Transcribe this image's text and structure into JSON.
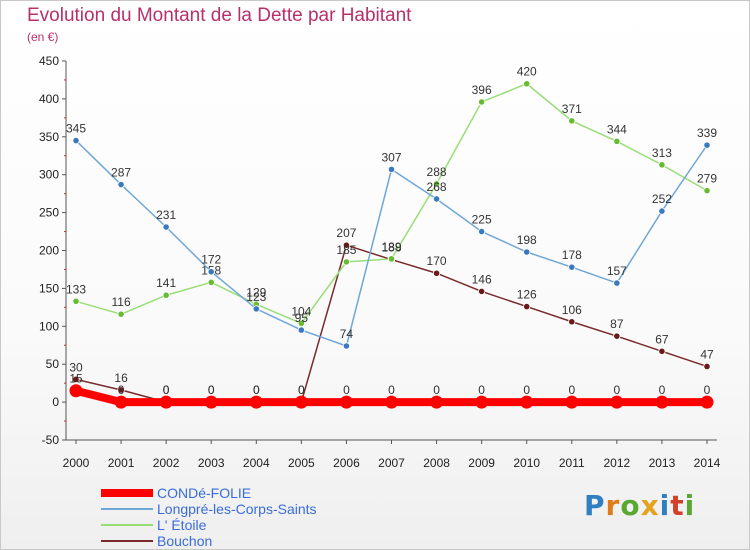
{
  "chart_data": {
    "type": "line",
    "title": "Evolution du Montant de la Dette par Habitant",
    "subtitle": "(en €)",
    "x": [
      "2000",
      "2001",
      "2002",
      "2003",
      "2004",
      "2005",
      "2006",
      "2007",
      "2008",
      "2009",
      "2010",
      "2011",
      "2012",
      "2013",
      "2014"
    ],
    "ylim": [
      -50,
      450
    ],
    "yticks": [
      -50,
      0,
      50,
      100,
      150,
      200,
      250,
      300,
      350,
      400,
      450
    ],
    "grid": false,
    "legend_position": "bottom-left",
    "series": [
      {
        "name": "CONDé-FOLIE",
        "color": "#ff0000",
        "values": [
          15,
          0,
          0,
          0,
          0,
          0,
          0,
          0,
          0,
          0,
          0,
          0,
          0,
          0,
          0
        ]
      },
      {
        "name": "Longpré-les-Corps-Saints",
        "color": "#6fa6d8",
        "marker": "#3a79c0",
        "values": [
          345,
          287,
          231,
          172,
          123,
          95,
          74,
          307,
          268,
          225,
          198,
          178,
          157,
          252,
          339
        ]
      },
      {
        "name": "L' Étoile",
        "color": "#99dd77",
        "marker": "#66bb33",
        "values": [
          133,
          116,
          141,
          158,
          129,
          104,
          185,
          189,
          288,
          396,
          420,
          371,
          344,
          313,
          279
        ]
      },
      {
        "name": "Bouchon",
        "color": "#7a2a2a",
        "marker": "#6a1818",
        "values": [
          30,
          16,
          0,
          0,
          0,
          0,
          207,
          188,
          170,
          146,
          126,
          106,
          87,
          67,
          47
        ]
      }
    ]
  },
  "logo": {
    "letters": [
      "P",
      "r",
      "o",
      "x",
      "i",
      "t",
      "i"
    ]
  }
}
